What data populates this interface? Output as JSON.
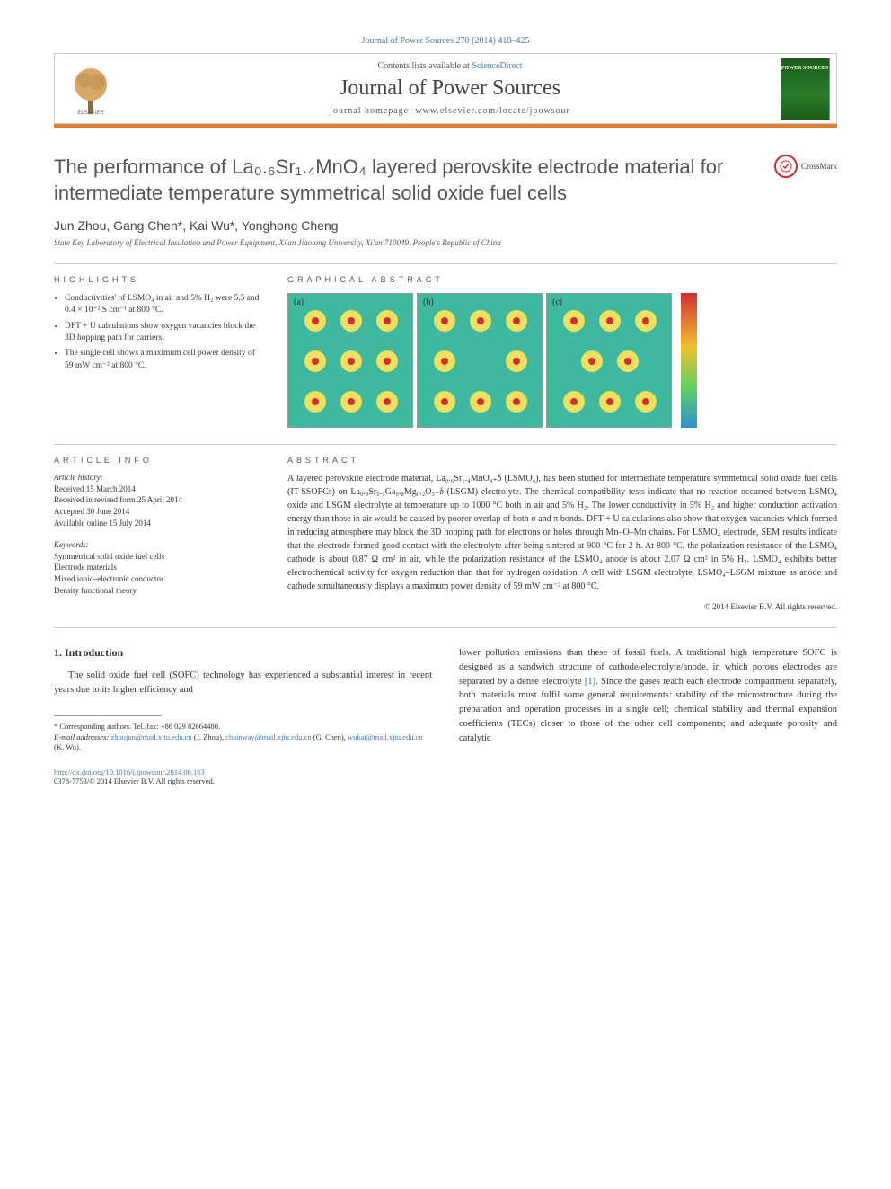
{
  "citation": "Journal of Power Sources 270 (2014) 418–425",
  "header": {
    "contents_prefix": "Contents lists available at ",
    "contents_link": "ScienceDirect",
    "journal": "Journal of Power Sources",
    "homepage_prefix": "journal homepage: ",
    "homepage_url": "www.elsevier.com/locate/jpowsour",
    "publisher_logo_label": "ELSEVIER",
    "cover_label": "POWER SOURCES"
  },
  "title": "The performance of La₀.₆Sr₁.₄MnO₄ layered perovskite electrode material for intermediate temperature symmetrical solid oxide fuel cells",
  "crossmark": "CrossMark",
  "authors": "Jun Zhou, Gang Chen*, Kai Wu*, Yonghong Cheng",
  "affiliation": "State Key Laboratory of Electrical Insulation and Power Equipment, Xi'an Jiaotong University, Xi'an 710049, People's Republic of China",
  "highlights_label": "HIGHLIGHTS",
  "highlights": [
    "Conductivities' of LSMO₄ in air and 5% H₂ were 5.5 and 0.4 × 10⁻² S cm⁻¹ at 800 °C.",
    "DFT + U calculations show oxygen vacancies block the 3D hopping path for carriers.",
    "The single cell shows a maximum cell power density of 59 mW cm⁻² at 800 °C."
  ],
  "graphical_label": "GRAPHICAL ABSTRACT",
  "graphical_panels": [
    "(a)",
    "(b)",
    "(c)"
  ],
  "article_info_label": "ARTICLE INFO",
  "article_info": {
    "history_heading": "Article history:",
    "received": "Received 15 March 2014",
    "revised": "Received in revised form 25 April 2014",
    "accepted": "Accepted 30 June 2014",
    "online": "Available online 15 July 2014",
    "keywords_heading": "Keywords:",
    "keywords": [
      "Symmetrical solid oxide fuel cells",
      "Electrode materials",
      "Mixed ionic–electronic conductor",
      "Density functional theory"
    ]
  },
  "abstract_label": "ABSTRACT",
  "abstract": "A layered perovskite electrode material, La₀.₆Sr₁.₄MnO₄₊δ (LSMO₄), has been studied for intermediate temperature symmetrical solid oxide fuel cells (IT-SSOFCs) on La₀.₉Sr₀.₁Ga₀.₈Mg₀.₂O₃₋δ (LSGM) electrolyte. The chemical compatibility tests indicate that no reaction occurred between LSMO₄ oxide and LSGM electrolyte at temperature up to 1000 °C both in air and 5% H₂. The lower conductivity in 5% H₂ and higher conduction activation energy than those in air would be caused by poorer overlap of both σ and π bonds. DFT + U calculations also show that oxygen vacancies which formed in reducing atmosphere may block the 3D hopping path for electrons or holes through Mn–O–Mn chains. For LSMO₄ electrode, SEM results indicate that the electrode formed good contact with the electrolyte after being sintered at 900 °C for 2 h. At 800 °C, the polarization resistance of the LSMO₄ cathode is about 0.87 Ω cm² in air, while the polarization resistance of the LSMO₄ anode is about 2.07 Ω cm² in 5% H₂. LSMO₄ exhibits better electrochemical activity for oxygen reduction than that for hydrogen oxidation. A cell with LSGM electrolyte, LSMO₄–LSGM mixture as anode and cathode simultaneously displays a maximum power density of 59 mW cm⁻² at 800 °C.",
  "copyright": "© 2014 Elsevier B.V. All rights reserved.",
  "intro_heading": "1. Introduction",
  "intro_left": "The solid oxide fuel cell (SOFC) technology has experienced a substantial interest in recent years due to its higher efficiency and",
  "intro_right": "lower pollution emissions than these of fossil fuels. A traditional high temperature SOFC is designed as a sandwich structure of cathode/electrolyte/anode, in which porous electrodes are separated by a dense electrolyte [1]. Since the gases reach each electrode compartment separately, both materials must fulfil some general requirements: stability of the microstructure during the preparation and operation processes in a single cell; chemical stability and thermal expansion coefficients (TECs) closer to those of the other cell components; and adequate porosity and catalytic",
  "ref_1": "[1]",
  "footnote": {
    "corresponding": "* Corresponding authors. Tel./fax: +86 029 82664480.",
    "email_label": "E-mail addresses: ",
    "email1": "zhoujun@mail.xjtu.edu.cn",
    "email1_name": " (J. Zhou), ",
    "email2": "chainway@mail.xjtu.edu.cn",
    "email2_name": " (G. Chen), ",
    "email3": "wukai@mail.xjtu.edu.cn",
    "email3_name": " (K. Wu)."
  },
  "doi": {
    "url": "http://dx.doi.org/10.1016/j.jpowsour.2014.06.163",
    "issn": "0378-7753/© 2014 Elsevier B.V. All rights reserved."
  },
  "colors": {
    "link": "#4a7ab0",
    "orange_bar": "#e08030",
    "panel_bg": "#3eb89e",
    "crossmark_ring": "#c83030"
  }
}
